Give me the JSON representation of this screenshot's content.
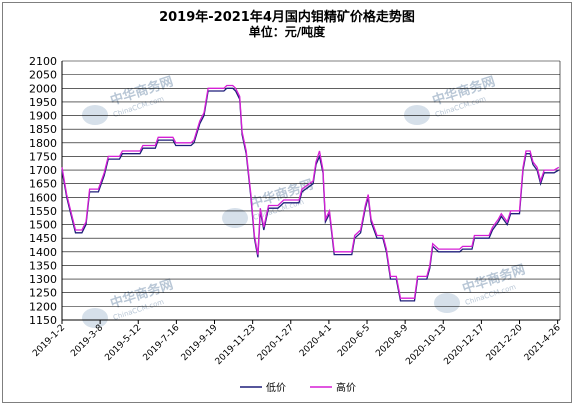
{
  "chart_data": {
    "type": "line",
    "title": "2019年-2021年4月国内钼精矿价格走势图",
    "subtitle": "单位：元/吨度",
    "ylim": [
      1150,
      2100
    ],
    "yticks": [
      1150,
      1200,
      1250,
      1300,
      1350,
      1400,
      1450,
      1500,
      1550,
      1600,
      1650,
      1700,
      1750,
      1800,
      1850,
      1900,
      1950,
      2000,
      2050,
      2100
    ],
    "x_tick_labels": [
      "2019-1-2",
      "2019-3-8",
      "2019-5-12",
      "2019-7-16",
      "2019-9-19",
      "2019-11-23",
      "2020-1-27",
      "2020-4-1",
      "2020-6-5",
      "2020-8-9",
      "2020-10-13",
      "2020-12-17",
      "2021-2-20",
      "2021-4-26"
    ],
    "x_start": "2019-01-02",
    "x_end": "2021-04-30",
    "grid": true,
    "legend_position": "bottom",
    "series": [
      {
        "name": "低价",
        "color": "#1f1f7a",
        "points": [
          [
            "2019-01-02",
            1700
          ],
          [
            "2019-01-10",
            1600
          ],
          [
            "2019-01-18",
            1530
          ],
          [
            "2019-01-25",
            1470
          ],
          [
            "2019-02-05",
            1470
          ],
          [
            "2019-02-12",
            1500
          ],
          [
            "2019-02-18",
            1620
          ],
          [
            "2019-03-05",
            1620
          ],
          [
            "2019-03-15",
            1680
          ],
          [
            "2019-03-22",
            1740
          ],
          [
            "2019-04-10",
            1740
          ],
          [
            "2019-04-15",
            1760
          ],
          [
            "2019-05-15",
            1760
          ],
          [
            "2019-05-20",
            1780
          ],
          [
            "2019-06-10",
            1780
          ],
          [
            "2019-06-15",
            1810
          ],
          [
            "2019-07-10",
            1810
          ],
          [
            "2019-07-15",
            1790
          ],
          [
            "2019-08-10",
            1790
          ],
          [
            "2019-08-15",
            1800
          ],
          [
            "2019-08-25",
            1870
          ],
          [
            "2019-09-01",
            1900
          ],
          [
            "2019-09-08",
            1990
          ],
          [
            "2019-10-05",
            1990
          ],
          [
            "2019-10-10",
            2000
          ],
          [
            "2019-10-20",
            2000
          ],
          [
            "2019-10-25",
            1990
          ],
          [
            "2019-11-01",
            1960
          ],
          [
            "2019-11-05",
            1830
          ],
          [
            "2019-11-12",
            1760
          ],
          [
            "2019-11-20",
            1600
          ],
          [
            "2019-11-26",
            1450
          ],
          [
            "2019-12-02",
            1380
          ],
          [
            "2019-12-06",
            1550
          ],
          [
            "2019-12-12",
            1480
          ],
          [
            "2019-12-20",
            1560
          ],
          [
            "2020-01-05",
            1560
          ],
          [
            "2020-01-15",
            1580
          ],
          [
            "2020-02-10",
            1580
          ],
          [
            "2020-02-15",
            1620
          ],
          [
            "2020-03-05",
            1650
          ],
          [
            "2020-03-10",
            1720
          ],
          [
            "2020-03-16",
            1750
          ],
          [
            "2020-03-22",
            1690
          ],
          [
            "2020-03-26",
            1510
          ],
          [
            "2020-04-02",
            1540
          ],
          [
            "2020-04-10",
            1390
          ],
          [
            "2020-05-10",
            1390
          ],
          [
            "2020-05-15",
            1450
          ],
          [
            "2020-05-25",
            1470
          ],
          [
            "2020-06-02",
            1560
          ],
          [
            "2020-06-07",
            1600
          ],
          [
            "2020-06-12",
            1510
          ],
          [
            "2020-06-22",
            1450
          ],
          [
            "2020-07-02",
            1450
          ],
          [
            "2020-07-08",
            1400
          ],
          [
            "2020-07-15",
            1300
          ],
          [
            "2020-07-25",
            1300
          ],
          [
            "2020-08-01",
            1220
          ],
          [
            "2020-08-25",
            1220
          ],
          [
            "2020-08-30",
            1300
          ],
          [
            "2020-09-15",
            1300
          ],
          [
            "2020-09-20",
            1340
          ],
          [
            "2020-09-25",
            1420
          ],
          [
            "2020-10-05",
            1400
          ],
          [
            "2020-11-10",
            1400
          ],
          [
            "2020-11-15",
            1410
          ],
          [
            "2020-12-01",
            1410
          ],
          [
            "2020-12-05",
            1450
          ],
          [
            "2020-12-30",
            1450
          ],
          [
            "2021-01-05",
            1480
          ],
          [
            "2021-01-15",
            1510
          ],
          [
            "2021-01-20",
            1530
          ],
          [
            "2021-01-30",
            1500
          ],
          [
            "2021-02-05",
            1540
          ],
          [
            "2021-02-20",
            1540
          ],
          [
            "2021-02-26",
            1700
          ],
          [
            "2021-03-03",
            1760
          ],
          [
            "2021-03-10",
            1760
          ],
          [
            "2021-03-15",
            1720
          ],
          [
            "2021-03-22",
            1700
          ],
          [
            "2021-03-28",
            1650
          ],
          [
            "2021-04-03",
            1690
          ],
          [
            "2021-04-20",
            1690
          ],
          [
            "2021-04-28",
            1700
          ]
        ]
      },
      {
        "name": "高价",
        "color": "#d51fd5",
        "points": [
          [
            "2019-01-02",
            1710
          ],
          [
            "2019-01-10",
            1610
          ],
          [
            "2019-01-18",
            1540
          ],
          [
            "2019-01-25",
            1480
          ],
          [
            "2019-02-05",
            1480
          ],
          [
            "2019-02-12",
            1510
          ],
          [
            "2019-02-18",
            1630
          ],
          [
            "2019-03-05",
            1630
          ],
          [
            "2019-03-15",
            1690
          ],
          [
            "2019-03-22",
            1750
          ],
          [
            "2019-04-10",
            1750
          ],
          [
            "2019-04-15",
            1770
          ],
          [
            "2019-05-15",
            1770
          ],
          [
            "2019-05-20",
            1790
          ],
          [
            "2019-06-10",
            1790
          ],
          [
            "2019-06-15",
            1820
          ],
          [
            "2019-07-10",
            1820
          ],
          [
            "2019-07-15",
            1800
          ],
          [
            "2019-08-10",
            1800
          ],
          [
            "2019-08-15",
            1810
          ],
          [
            "2019-08-25",
            1880
          ],
          [
            "2019-09-01",
            1910
          ],
          [
            "2019-09-08",
            2000
          ],
          [
            "2019-10-05",
            2000
          ],
          [
            "2019-10-10",
            2010
          ],
          [
            "2019-10-20",
            2010
          ],
          [
            "2019-10-25",
            2000
          ],
          [
            "2019-11-01",
            1970
          ],
          [
            "2019-11-05",
            1840
          ],
          [
            "2019-11-12",
            1770
          ],
          [
            "2019-11-20",
            1610
          ],
          [
            "2019-11-26",
            1460
          ],
          [
            "2019-12-02",
            1390
          ],
          [
            "2019-12-06",
            1560
          ],
          [
            "2019-12-12",
            1490
          ],
          [
            "2019-12-20",
            1570
          ],
          [
            "2020-01-05",
            1570
          ],
          [
            "2020-01-15",
            1590
          ],
          [
            "2020-02-10",
            1590
          ],
          [
            "2020-02-15",
            1630
          ],
          [
            "2020-03-05",
            1660
          ],
          [
            "2020-03-10",
            1730
          ],
          [
            "2020-03-16",
            1770
          ],
          [
            "2020-03-22",
            1700
          ],
          [
            "2020-03-26",
            1520
          ],
          [
            "2020-04-02",
            1550
          ],
          [
            "2020-04-10",
            1400
          ],
          [
            "2020-05-10",
            1400
          ],
          [
            "2020-05-15",
            1460
          ],
          [
            "2020-05-25",
            1480
          ],
          [
            "2020-06-02",
            1570
          ],
          [
            "2020-06-07",
            1610
          ],
          [
            "2020-06-12",
            1520
          ],
          [
            "2020-06-22",
            1460
          ],
          [
            "2020-07-02",
            1460
          ],
          [
            "2020-07-08",
            1410
          ],
          [
            "2020-07-15",
            1310
          ],
          [
            "2020-07-25",
            1310
          ],
          [
            "2020-08-01",
            1230
          ],
          [
            "2020-08-25",
            1230
          ],
          [
            "2020-08-30",
            1310
          ],
          [
            "2020-09-15",
            1310
          ],
          [
            "2020-09-20",
            1350
          ],
          [
            "2020-09-25",
            1430
          ],
          [
            "2020-10-05",
            1410
          ],
          [
            "2020-11-10",
            1410
          ],
          [
            "2020-11-15",
            1420
          ],
          [
            "2020-12-01",
            1420
          ],
          [
            "2020-12-05",
            1460
          ],
          [
            "2020-12-30",
            1460
          ],
          [
            "2021-01-05",
            1490
          ],
          [
            "2021-01-15",
            1520
          ],
          [
            "2021-01-20",
            1540
          ],
          [
            "2021-01-30",
            1510
          ],
          [
            "2021-02-05",
            1550
          ],
          [
            "2021-02-20",
            1550
          ],
          [
            "2021-02-26",
            1710
          ],
          [
            "2021-03-03",
            1770
          ],
          [
            "2021-03-10",
            1770
          ],
          [
            "2021-03-15",
            1730
          ],
          [
            "2021-03-22",
            1710
          ],
          [
            "2021-03-28",
            1660
          ],
          [
            "2021-04-03",
            1700
          ],
          [
            "2021-04-20",
            1700
          ],
          [
            "2021-04-28",
            1710
          ]
        ]
      }
    ]
  },
  "watermark": {
    "text": "中华商务网",
    "subtext": "ChinaCCM.com"
  }
}
